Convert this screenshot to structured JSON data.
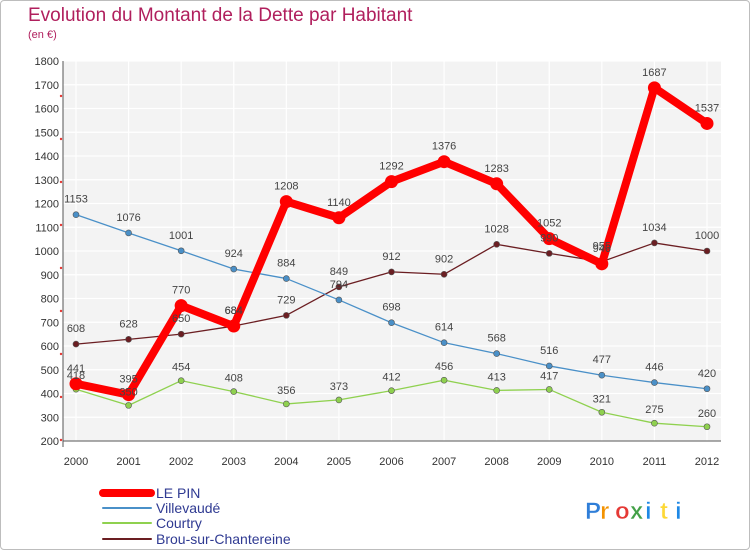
{
  "title": "Evolution du Montant de la Dette par Habitant",
  "subtitle": "(en €)",
  "logo": {
    "text": "Proxiti",
    "letters": [
      "P",
      "r",
      "o",
      "x",
      "i",
      "t",
      "i"
    ],
    "colors": [
      "#2f7ed8",
      "#f39200",
      "#e53935",
      "#43a047",
      "#1e88e5",
      "#fdd835",
      "#1e88e5"
    ]
  },
  "chart_data": {
    "type": "line",
    "title": "Evolution du Montant de la Dette par Habitant",
    "ylabel": "(en €)",
    "x": [
      "2000",
      "2001",
      "2002",
      "2003",
      "2004",
      "2005",
      "2006",
      "2007",
      "2008",
      "2009",
      "2010",
      "2011",
      "2012"
    ],
    "ylim": [
      200,
      1800
    ],
    "yticks": [
      200,
      300,
      400,
      500,
      600,
      700,
      800,
      900,
      1000,
      1100,
      1200,
      1300,
      1400,
      1500,
      1600,
      1700,
      1800
    ],
    "grid": true,
    "legend_position": "bottom-left",
    "series": [
      {
        "name": "LE PIN",
        "color": "#ff0000",
        "values": [
          441,
          395,
          770,
          684,
          1208,
          1140,
          1292,
          1376,
          1283,
          1052,
          946,
          1687,
          1537
        ]
      },
      {
        "name": "Villevaudé",
        "color": "#4a90c8",
        "values": [
          1153,
          1076,
          1001,
          924,
          884,
          794,
          698,
          614,
          568,
          516,
          477,
          446,
          420
        ]
      },
      {
        "name": "Courtry",
        "color": "#8fd14f",
        "values": [
          418,
          350,
          454,
          408,
          356,
          373,
          412,
          456,
          413,
          417,
          321,
          275,
          260
        ]
      },
      {
        "name": "Brou-sur-Chantereine",
        "color": "#6b1e22",
        "values": [
          608,
          628,
          650,
          684,
          729,
          849,
          912,
          902,
          1028,
          990,
          955,
          1034,
          1000
        ]
      }
    ]
  }
}
